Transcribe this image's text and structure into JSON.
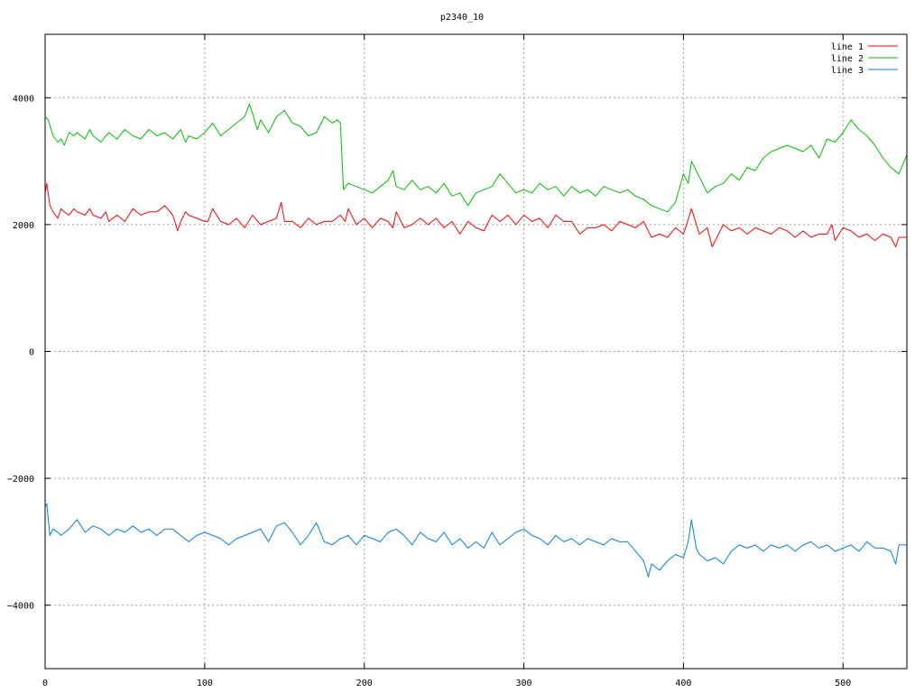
{
  "chart_data": {
    "type": "line",
    "title": "p2340_10",
    "xlabel": "",
    "ylabel": "",
    "xlim": [
      0,
      540
    ],
    "ylim": [
      -5000,
      5000
    ],
    "x_ticks": [
      0,
      100,
      200,
      300,
      400,
      500
    ],
    "y_ticks": [
      -4000,
      -2000,
      0,
      2000,
      4000
    ],
    "grid": true,
    "legend_position": "top-right",
    "series": [
      {
        "name": "line 1",
        "color": "#ff0000",
        "x": [
          0,
          1,
          3,
          5,
          8,
          10,
          12,
          15,
          18,
          20,
          25,
          28,
          30,
          35,
          38,
          40,
          45,
          50,
          55,
          60,
          65,
          70,
          75,
          80,
          83,
          85,
          88,
          90,
          95,
          100,
          102,
          105,
          110,
          115,
          120,
          125,
          130,
          135,
          140,
          145,
          148,
          150,
          155,
          160,
          165,
          170,
          175,
          180,
          185,
          188,
          190,
          195,
          200,
          205,
          210,
          215,
          218,
          220,
          225,
          230,
          235,
          240,
          245,
          250,
          255,
          260,
          265,
          270,
          275,
          280,
          285,
          290,
          295,
          300,
          305,
          310,
          315,
          320,
          325,
          330,
          335,
          340,
          345,
          350,
          355,
          360,
          365,
          370,
          375,
          380,
          385,
          390,
          395,
          400,
          402,
          405,
          410,
          415,
          418,
          420,
          425,
          430,
          435,
          440,
          445,
          450,
          455,
          460,
          465,
          470,
          475,
          480,
          485,
          490,
          493,
          495,
          500,
          505,
          510,
          515,
          520,
          525,
          530,
          533,
          535,
          540
        ],
        "y": [
          2500,
          2650,
          2300,
          2200,
          2100,
          2250,
          2200,
          2150,
          2250,
          2200,
          2150,
          2250,
          2150,
          2100,
          2200,
          2050,
          2150,
          2050,
          2250,
          2150,
          2200,
          2200,
          2300,
          2150,
          1900,
          2050,
          2200,
          2150,
          2100,
          2050,
          2050,
          2250,
          2050,
          2000,
          2100,
          1950,
          2150,
          2000,
          2050,
          2100,
          2350,
          2050,
          2050,
          1950,
          2100,
          2000,
          2050,
          2050,
          2150,
          2050,
          2250,
          2000,
          2100,
          1950,
          2100,
          2050,
          1950,
          2200,
          1950,
          2000,
          2100,
          2000,
          2100,
          1950,
          2050,
          1850,
          2050,
          1950,
          1900,
          2150,
          2050,
          2150,
          2000,
          2150,
          2050,
          2100,
          1950,
          2150,
          2050,
          2050,
          1850,
          1950,
          1950,
          2000,
          1900,
          2050,
          2000,
          1950,
          2050,
          1800,
          1850,
          1800,
          1950,
          1850,
          2000,
          2250,
          1850,
          1950,
          1650,
          1750,
          2000,
          1900,
          1950,
          1850,
          1950,
          1900,
          1850,
          1950,
          1900,
          1800,
          1900,
          1800,
          1850,
          1850,
          2000,
          1750,
          1950,
          1900,
          1800,
          1850,
          1750,
          1850,
          1800,
          1650,
          1800,
          1800
        ]
      },
      {
        "name": "line 2",
        "color": "#00c000",
        "x": [
          0,
          2,
          5,
          8,
          10,
          12,
          15,
          18,
          20,
          25,
          28,
          30,
          35,
          38,
          40,
          45,
          50,
          55,
          60,
          65,
          70,
          75,
          80,
          85,
          88,
          90,
          95,
          100,
          105,
          110,
          115,
          120,
          125,
          128,
          130,
          133,
          135,
          140,
          145,
          150,
          155,
          160,
          165,
          170,
          175,
          180,
          183,
          185,
          187,
          190,
          195,
          200,
          205,
          210,
          215,
          218,
          220,
          225,
          230,
          235,
          240,
          245,
          250,
          255,
          260,
          265,
          270,
          275,
          280,
          285,
          290,
          295,
          300,
          305,
          310,
          315,
          320,
          325,
          330,
          335,
          340,
          345,
          350,
          355,
          360,
          365,
          370,
          375,
          380,
          385,
          390,
          395,
          400,
          403,
          405,
          410,
          415,
          420,
          425,
          430,
          435,
          440,
          445,
          450,
          455,
          460,
          465,
          470,
          475,
          480,
          485,
          490,
          495,
          500,
          505,
          510,
          515,
          520,
          525,
          530,
          535,
          540
        ],
        "y": [
          3700,
          3650,
          3400,
          3300,
          3350,
          3250,
          3450,
          3400,
          3450,
          3350,
          3500,
          3400,
          3300,
          3400,
          3450,
          3350,
          3500,
          3400,
          3350,
          3500,
          3400,
          3450,
          3350,
          3500,
          3300,
          3400,
          3350,
          3450,
          3600,
          3400,
          3500,
          3600,
          3700,
          3900,
          3750,
          3500,
          3650,
          3450,
          3700,
          3800,
          3600,
          3550,
          3400,
          3450,
          3700,
          3600,
          3650,
          3600,
          2550,
          2650,
          2600,
          2550,
          2500,
          2600,
          2700,
          2850,
          2600,
          2550,
          2700,
          2550,
          2600,
          2500,
          2650,
          2450,
          2500,
          2300,
          2500,
          2550,
          2600,
          2800,
          2650,
          2500,
          2550,
          2500,
          2650,
          2550,
          2600,
          2450,
          2600,
          2500,
          2550,
          2450,
          2600,
          2550,
          2500,
          2550,
          2450,
          2400,
          2300,
          2250,
          2200,
          2350,
          2800,
          2650,
          3000,
          2750,
          2500,
          2600,
          2650,
          2800,
          2700,
          2900,
          2850,
          3050,
          3150,
          3200,
          3250,
          3200,
          3150,
          3250,
          3050,
          3350,
          3300,
          3450,
          3650,
          3500,
          3400,
          3250,
          3050,
          2900,
          2800,
          3100
        ]
      },
      {
        "name": "line 3",
        "color": "#0080e0",
        "x": [
          0,
          1,
          3,
          5,
          8,
          10,
          15,
          20,
          25,
          30,
          35,
          40,
          45,
          50,
          55,
          60,
          65,
          70,
          75,
          80,
          85,
          90,
          95,
          100,
          105,
          110,
          115,
          120,
          125,
          130,
          135,
          140,
          145,
          150,
          155,
          160,
          165,
          170,
          175,
          180,
          185,
          190,
          195,
          200,
          205,
          210,
          215,
          220,
          225,
          230,
          235,
          240,
          245,
          250,
          255,
          260,
          265,
          270,
          275,
          280,
          285,
          290,
          295,
          300,
          305,
          310,
          315,
          320,
          325,
          330,
          335,
          340,
          345,
          350,
          355,
          360,
          365,
          370,
          375,
          378,
          380,
          385,
          390,
          395,
          400,
          403,
          405,
          408,
          410,
          415,
          420,
          425,
          430,
          435,
          440,
          445,
          450,
          455,
          460,
          465,
          470,
          475,
          480,
          485,
          490,
          495,
          500,
          505,
          510,
          515,
          520,
          525,
          530,
          533,
          535,
          540
        ],
        "y": [
          -2450,
          -2400,
          -2900,
          -2800,
          -2850,
          -2900,
          -2800,
          -2650,
          -2850,
          -2750,
          -2800,
          -2900,
          -2800,
          -2850,
          -2750,
          -2850,
          -2800,
          -2900,
          -2800,
          -2800,
          -2900,
          -3000,
          -2900,
          -2850,
          -2900,
          -2950,
          -3050,
          -2950,
          -2900,
          -2850,
          -2800,
          -3000,
          -2750,
          -2700,
          -2850,
          -3050,
          -2900,
          -2700,
          -3000,
          -3050,
          -2950,
          -2900,
          -3050,
          -2900,
          -2950,
          -3000,
          -2850,
          -2800,
          -2900,
          -3050,
          -2850,
          -2950,
          -3000,
          -2850,
          -3050,
          -2950,
          -3100,
          -3000,
          -3100,
          -2850,
          -3050,
          -2950,
          -2850,
          -2800,
          -2900,
          -2950,
          -3050,
          -2900,
          -3000,
          -2950,
          -3050,
          -2950,
          -3000,
          -3050,
          -2950,
          -3000,
          -3000,
          -3150,
          -3300,
          -3550,
          -3350,
          -3450,
          -3300,
          -3200,
          -3250,
          -3000,
          -2650,
          -3100,
          -3200,
          -3300,
          -3250,
          -3350,
          -3150,
          -3050,
          -3100,
          -3050,
          -3150,
          -3050,
          -3100,
          -3050,
          -3150,
          -3050,
          -3000,
          -3100,
          -3050,
          -3150,
          -3100,
          -3050,
          -3150,
          -3000,
          -3100,
          -3100,
          -3150,
          -3350,
          -3050,
          -3050
        ]
      }
    ]
  }
}
